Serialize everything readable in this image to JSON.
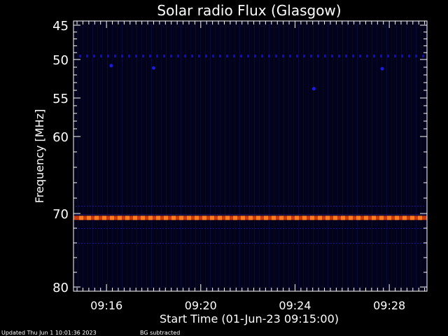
{
  "chart_data": {
    "type": "heatmap",
    "title": "Solar radio Flux (Glasgow)",
    "xlabel": "Start Time (01-Jun-23 09:15:00)",
    "ylabel": "Frequency [MHz]",
    "x_ticks": [
      "09:16",
      "09:20",
      "09:24",
      "09:28"
    ],
    "x_tick_minutes": [
      1,
      5,
      9,
      13
    ],
    "x_range_minutes": [
      -0.4,
      14.6
    ],
    "y_ticks": [
      45,
      50,
      55,
      60,
      70,
      80
    ],
    "y_range": [
      45,
      80
    ],
    "y_scale": "nonlinear",
    "colors": {
      "background": "#02021a",
      "line": "#0a0ad0",
      "hot": "#ff7a1a",
      "warm": "#c83a10"
    },
    "features": [
      {
        "kind": "band",
        "freq_mhz": 49.5,
        "strength": "moderate"
      },
      {
        "kind": "band",
        "freq_mhz": 69.0,
        "strength": "weak"
      },
      {
        "kind": "band",
        "freq_mhz": 70.6,
        "strength": "strong"
      },
      {
        "kind": "band",
        "freq_mhz": 72.0,
        "strength": "weak"
      },
      {
        "kind": "band",
        "freq_mhz": 74.0,
        "strength": "weak"
      },
      {
        "kind": "spot",
        "freq_mhz": 53.8,
        "time_min": 9.8
      },
      {
        "kind": "spot",
        "freq_mhz": 51.2,
        "time_min": 12.7
      },
      {
        "kind": "spot",
        "freq_mhz": 51.1,
        "time_min": 3.0
      },
      {
        "kind": "spot",
        "freq_mhz": 50.8,
        "time_min": 1.2
      }
    ]
  },
  "footer": {
    "updated": "Updated Thu Jun  1 10:01:36 2023",
    "note": "BG subtracted"
  }
}
